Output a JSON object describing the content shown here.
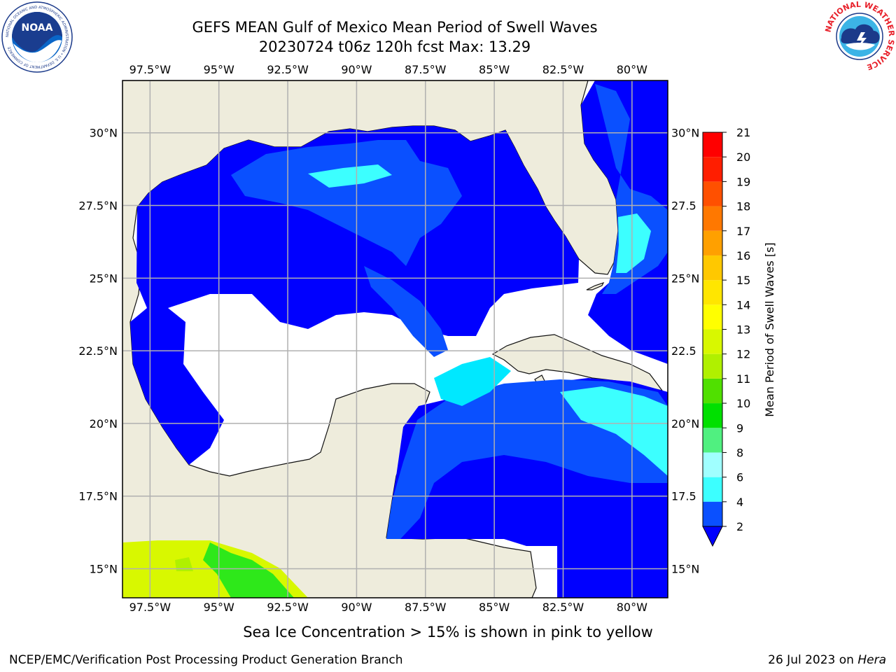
{
  "header": {
    "title_line1": "GEFS MEAN Gulf of Mexico Mean Period of Swell Waves",
    "title_line2": "20230724 t06z 120h fcst   Max: 13.29"
  },
  "logos": {
    "noaa_text": "NOAA",
    "noaa_ring": "NATIONAL OCEANIC AND ATMOSPHERIC ADMINISTRATION • U.S. DEPARTMENT OF COMMERCE",
    "nws_ring": "NATIONAL WEATHER SERVICE"
  },
  "map": {
    "projection": "PlateCarree",
    "lon_range": [
      -98.5,
      -78.7
    ],
    "lat_range": [
      14.0,
      31.8
    ],
    "lon_ticks": [
      "97.5°W",
      "95°W",
      "92.5°W",
      "90°W",
      "87.5°W",
      "85°W",
      "82.5°W",
      "80°W"
    ],
    "lat_ticks": [
      "30°N",
      "27.5°N",
      "25°N",
      "22.5°N",
      "20°N",
      "17.5°N",
      "15°N"
    ],
    "right_lat_ticks": [
      "30°N",
      "27.5",
      "25°N",
      "22.5",
      "20°N",
      "17.5",
      "15°N"
    ],
    "grid": true,
    "land_color": "#eeecdc",
    "no_data_color": "#ffffff"
  },
  "colorbar": {
    "label": "Mean Period of Swell Waves [s]",
    "ticks": [
      "2",
      "4",
      "6",
      "8",
      "9",
      "10",
      "11",
      "12",
      "13",
      "14",
      "15",
      "16",
      "17",
      "18",
      "19",
      "20",
      "21"
    ],
    "colors": [
      "#0a50ff",
      "#00e8ff",
      "#3cffff",
      "#a0ffff",
      "#50f080",
      "#00e000",
      "#50e000",
      "#b0f000",
      "#d8f800",
      "#ffff00",
      "#ffe600",
      "#ffc800",
      "#ffa000",
      "#ff7800",
      "#ff5000",
      "#ff1e00",
      "#ff0000"
    ],
    "extend": "min",
    "under_color": "#0000ff"
  },
  "footer": {
    "note": "Sea Ice Concentration > 15% is shown in pink to yellow",
    "credit": "NCEP/EMC/Verification Post Processing Product Generation Branch",
    "date": "26 Jul 2023 on ",
    "host": "Hera"
  }
}
